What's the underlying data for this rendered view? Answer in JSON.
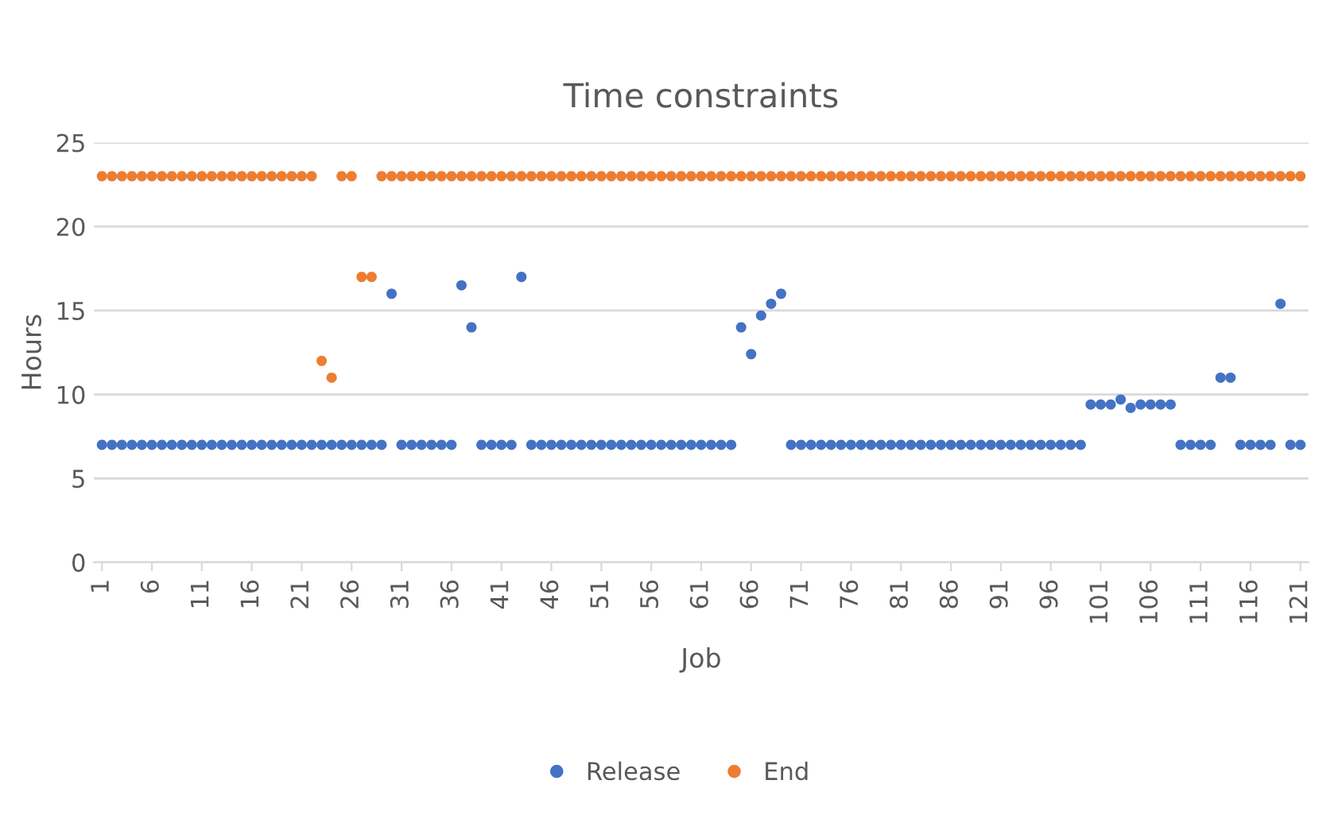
{
  "chart_data": {
    "type": "scatter",
    "title": "Time constraints",
    "xlabel": "Job",
    "ylabel": "Hours",
    "categories": [
      "1",
      null,
      null,
      null,
      null,
      "6",
      null,
      null,
      null,
      null,
      "11",
      null,
      null,
      null,
      null,
      "16",
      null,
      null,
      null,
      null,
      "21",
      null,
      null,
      null,
      null,
      "26",
      null,
      null,
      null,
      null,
      "31",
      null,
      null,
      null,
      null,
      "36",
      null,
      null,
      null,
      null,
      "41",
      null,
      null,
      null,
      null,
      "46",
      null,
      null,
      null,
      null,
      "51",
      null,
      null,
      null,
      null,
      "56",
      null,
      null,
      null,
      null,
      "61",
      null,
      null,
      null,
      null,
      "66",
      null,
      null,
      null,
      null,
      "71",
      null,
      null,
      null,
      null,
      "76",
      null,
      null,
      null,
      null,
      "81",
      null,
      null,
      null,
      null,
      "86",
      null,
      null,
      null,
      null,
      "91",
      null,
      null,
      null,
      null,
      "96",
      null,
      null,
      null,
      null,
      "101",
      null,
      null,
      null,
      null,
      "106",
      null,
      null,
      null,
      null,
      "111",
      null,
      null,
      null,
      null,
      "116",
      null,
      null,
      null,
      null,
      "121"
    ],
    "series": [
      {
        "name": "Release",
        "color": "#4472c4",
        "values": [
          7,
          7,
          7,
          7,
          7,
          7,
          7,
          7,
          7,
          7,
          7,
          7,
          7,
          7,
          7,
          7,
          7,
          7,
          7,
          7,
          7,
          7,
          7,
          7,
          7,
          7,
          7,
          7,
          7,
          16,
          7,
          7,
          7,
          7,
          7,
          7,
          16.5,
          14,
          7,
          7,
          7,
          7,
          17,
          7,
          7,
          7,
          7,
          7,
          7,
          7,
          7,
          7,
          7,
          7,
          7,
          7,
          7,
          7,
          7,
          7,
          7,
          7,
          7,
          7,
          14,
          12.4,
          14.7,
          15.4,
          16,
          7,
          7,
          7,
          7,
          7,
          7,
          7,
          7,
          7,
          7,
          7,
          7,
          7,
          7,
          7,
          7,
          7,
          7,
          7,
          7,
          7,
          7,
          7,
          7,
          7,
          7,
          7,
          7,
          7,
          7,
          9.4,
          9.4,
          9.4,
          9.7,
          9.2,
          9.4,
          9.4,
          9.4,
          9.4,
          7,
          7,
          7,
          7,
          11,
          11,
          7,
          7,
          7,
          7,
          15.4,
          7,
          7
        ]
      },
      {
        "name": "End",
        "color": "#ed7d31",
        "values": [
          23,
          23,
          23,
          23,
          23,
          23,
          23,
          23,
          23,
          23,
          23,
          23,
          23,
          23,
          23,
          23,
          23,
          23,
          23,
          23,
          23,
          23,
          12,
          11,
          23,
          23,
          17,
          17,
          23,
          23,
          23,
          23,
          23,
          23,
          23,
          23,
          23,
          23,
          23,
          23,
          23,
          23,
          23,
          23,
          23,
          23,
          23,
          23,
          23,
          23,
          23,
          23,
          23,
          23,
          23,
          23,
          23,
          23,
          23,
          23,
          23,
          23,
          23,
          23,
          23,
          23,
          23,
          23,
          23,
          23,
          23,
          23,
          23,
          23,
          23,
          23,
          23,
          23,
          23,
          23,
          23,
          23,
          23,
          23,
          23,
          23,
          23,
          23,
          23,
          23,
          23,
          23,
          23,
          23,
          23,
          23,
          23,
          23,
          23,
          23,
          23,
          23,
          23,
          23,
          23,
          23,
          23,
          23,
          23,
          23,
          23,
          23,
          23,
          23,
          23,
          23,
          23,
          23,
          23,
          23,
          23
        ]
      }
    ],
    "ylim": [
      0,
      25
    ],
    "yticks": [
      0,
      5,
      10,
      15,
      20,
      25
    ],
    "grid": "y",
    "legend": "bottom",
    "marker": "circle"
  }
}
